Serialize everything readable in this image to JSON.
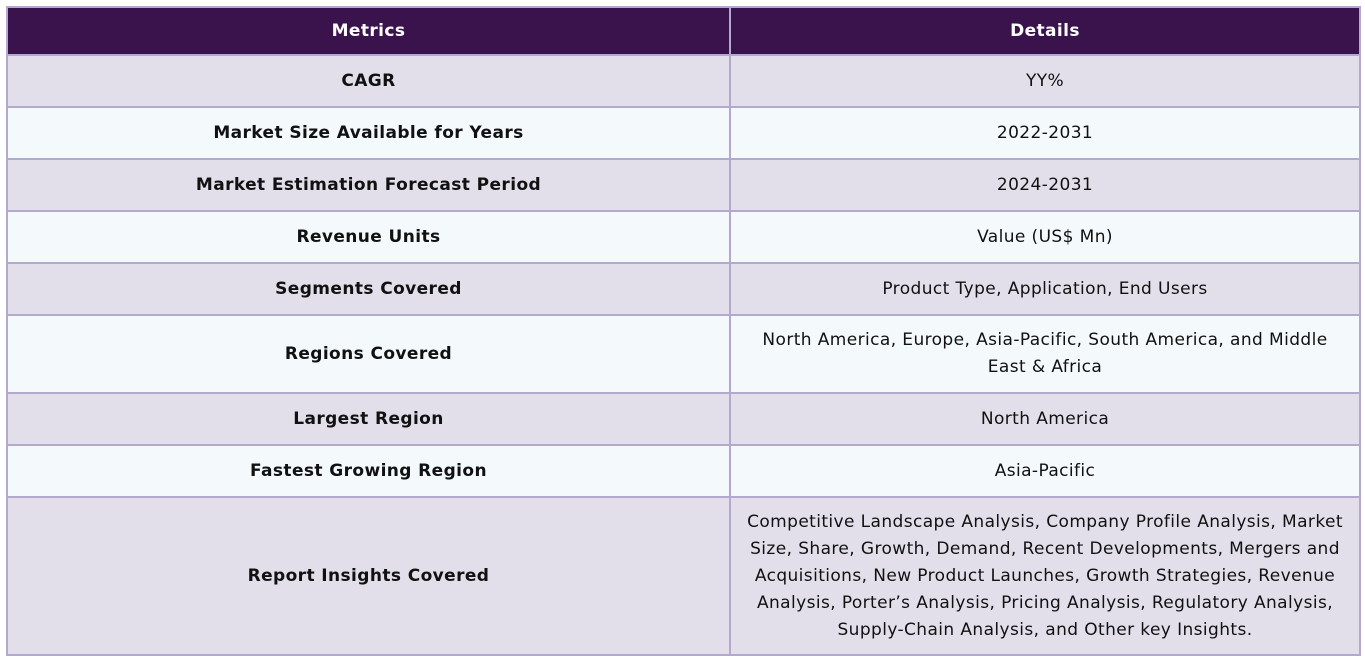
{
  "header": {
    "col1": "Metrics",
    "col2": "Details"
  },
  "rows": [
    {
      "metric": "CAGR",
      "details": "YY%"
    },
    {
      "metric": "Market Size Available for Years",
      "details": "2022-2031"
    },
    {
      "metric": "Market Estimation Forecast Period",
      "details": "2024-2031"
    },
    {
      "metric": "Revenue Units",
      "details": "Value (US$ Mn)"
    },
    {
      "metric": "Segments Covered",
      "details": "Product Type, Application, End Users"
    },
    {
      "metric": "Regions Covered",
      "details": "North America, Europe, Asia-Pacific, South America, and Middle East & Africa"
    },
    {
      "metric": "Largest Region",
      "details": "North America"
    },
    {
      "metric": "Fastest Growing Region",
      "details": "Asia-Pacific"
    },
    {
      "metric": "Report Insights Covered",
      "details": "Competitive Landscape Analysis, Company Profile Analysis, Market Size, Share, Growth, Demand, Recent Developments, Mergers and Acquisitions, New Product Launches, Growth Strategies, Revenue Analysis, Porter’s Analysis, Pricing Analysis, Regulatory Analysis, Supply-Chain Analysis, and Other key Insights."
    }
  ],
  "colors": {
    "header_bg": "#3a134d",
    "row_odd_bg": "#e2dfea",
    "row_even_bg": "#f4f9fb",
    "border": "#b3a9cf"
  }
}
